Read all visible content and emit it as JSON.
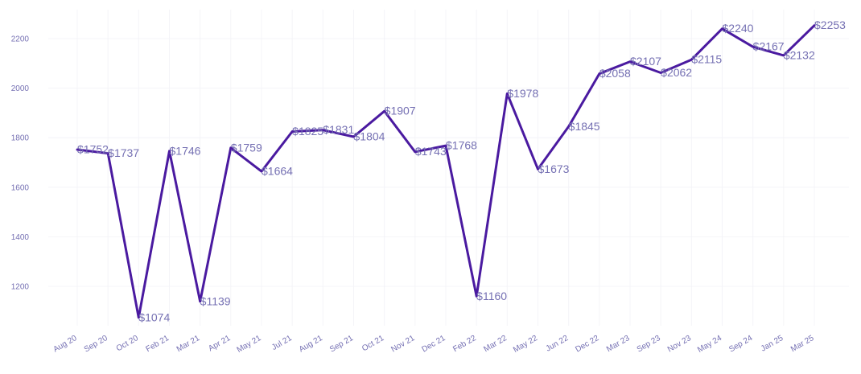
{
  "chart_data": {
    "type": "line",
    "title": "",
    "xlabel": "",
    "ylabel": "",
    "categories": [
      "Aug 20",
      "Sep 20",
      "Oct 20",
      "Feb 21",
      "Mar 21",
      "Apr 21",
      "May 21",
      "Jul 21",
      "Aug 21",
      "Sep 21",
      "Oct 21",
      "Nov 21",
      "Dec 21",
      "Feb 22",
      "Mar 22",
      "May 22",
      "Jun 22",
      "Dec 22",
      "Mar 23",
      "Sep 23",
      "Nov 23",
      "May 24",
      "Sep 24",
      "Jan 25",
      "Mar 25"
    ],
    "values": [
      1752,
      1737,
      1074,
      1746,
      1139,
      1759,
      1664,
      1825,
      1831,
      1804,
      1907,
      1743,
      1768,
      1160,
      1978,
      1673,
      1845,
      2058,
      2107,
      2062,
      2115,
      2240,
      2167,
      2132,
      2253
    ],
    "labels": [
      "$1752",
      "$1737",
      "$1074",
      "$1746",
      "$1139",
      "$1759",
      "$1664",
      "$1825",
      "$1831",
      "$1804",
      "$1907",
      "$1743",
      "$1768",
      "$1160",
      "$1978",
      "$1673",
      "$1845",
      "$2058",
      "$2107",
      "$2062",
      "$2115",
      "$2240",
      "$2167",
      "$2132",
      "$2253"
    ],
    "y_ticks": [
      1200,
      1400,
      1600,
      1800,
      2000,
      2200
    ],
    "ylim": [
      1020,
      2320
    ],
    "grid": true,
    "legend": "none",
    "colors": {
      "line": "#4a1aa0",
      "text": "#7570b3",
      "grid": "#f4f4f8"
    }
  }
}
